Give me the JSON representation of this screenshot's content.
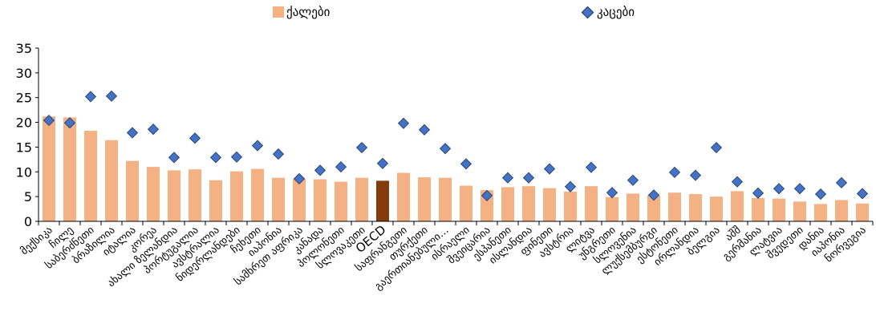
{
  "chart_data": {
    "type": "bar",
    "ylim": [
      0,
      35
    ],
    "yticks": [
      0,
      5,
      10,
      15,
      20,
      25,
      30,
      35
    ],
    "grid": false,
    "legend_position": "top",
    "categories": [
      "მექსიკა",
      "ჩილე",
      "საბერძნეთი",
      "ბრაზილია",
      "იტალია",
      "კორეა",
      "ახალი ზელანდია",
      "პორტუგალია",
      "ავსტრალია",
      "ნიდერლანდები",
      "ჩეხეთი",
      "იაპონია",
      "სამხრეთ აფრიკა",
      "კანადა",
      "პოლონეთი",
      "სლოვაკეთი",
      "OECD",
      "საფრანგეთი",
      "თურქეთი",
      "გაერთიანებული სამეფო",
      "ისრაელი",
      "შვეიცარია",
      "ესპანეთი",
      "ისლანდია",
      "ფინეთი",
      "ავსტრია",
      "ლიტვა",
      "უნგრეთი",
      "სლოვენია",
      "ლუქსემბურგი",
      "ესტონეთი",
      "ირლანდია",
      "ბელგია",
      "აშშ",
      "გერმანია",
      "ლატვია",
      "შვედეთი",
      "დანია",
      "იაპონია",
      "ნორვეგია"
    ],
    "x_tick_labels": [
      "მექსიკა",
      "ჩილე",
      "საბერძნეთი",
      "ბრაზილია",
      "იტალია",
      "კორეა",
      "ახალი ზელანდია",
      "პორტუგალია",
      "ავსტრალია",
      "ნიდერლანდები",
      "ჩეხეთი",
      "იაპონია",
      "სამხრეთ აფრიკა",
      "კანადა",
      "პოლონეთი",
      "სლოვაკეთი",
      "OECD",
      "საფრანგეთი",
      "თურქეთი",
      "გაერთიანებული…",
      "ისრაელი",
      "შვეიცარია",
      "ესპანეთი",
      "ისლანდია",
      "ფინეთი",
      "ავსტრია",
      "ლიტვა",
      "უნგრეთი",
      "სლოვენია",
      "ლუქსემბურგი",
      "ესტონეთი",
      "ირლანდია",
      "ბელგია",
      "აშშ",
      "გერმანია",
      "ლატვია",
      "შვედეთი",
      "დანია",
      "იაპონია",
      "ნორვეგია"
    ],
    "highlight_category": "OECD",
    "series": [
      {
        "name": "ქალები",
        "type": "bar",
        "color": "#F4B183",
        "highlight_color": "#843C0C",
        "values": [
          21.2,
          21.0,
          18.3,
          16.4,
          12.2,
          11.0,
          10.3,
          10.5,
          8.3,
          10.1,
          10.6,
          8.8,
          8.6,
          8.5,
          8.0,
          8.8,
          8.2,
          9.8,
          8.9,
          8.8,
          7.2,
          6.3,
          6.9,
          7.1,
          6.7,
          6.0,
          7.1,
          4.9,
          5.6,
          5.3,
          5.8,
          5.5,
          5.0,
          6.1,
          4.7,
          4.6,
          4.0,
          3.5,
          4.3,
          3.6
        ]
      },
      {
        "name": "კაცები",
        "type": "diamond",
        "color": "#4472C4",
        "values": [
          20.4,
          19.9,
          25.2,
          25.3,
          17.9,
          18.6,
          12.9,
          16.8,
          12.9,
          13.0,
          15.3,
          13.6,
          8.6,
          10.3,
          11.0,
          14.9,
          11.7,
          19.8,
          18.5,
          14.7,
          11.6,
          5.2,
          8.8,
          8.8,
          10.6,
          7.0,
          10.9,
          5.8,
          8.3,
          5.3,
          9.9,
          9.3,
          14.9,
          8.0,
          5.7,
          6.6,
          6.6,
          5.5,
          7.8,
          5.6
        ]
      }
    ]
  }
}
